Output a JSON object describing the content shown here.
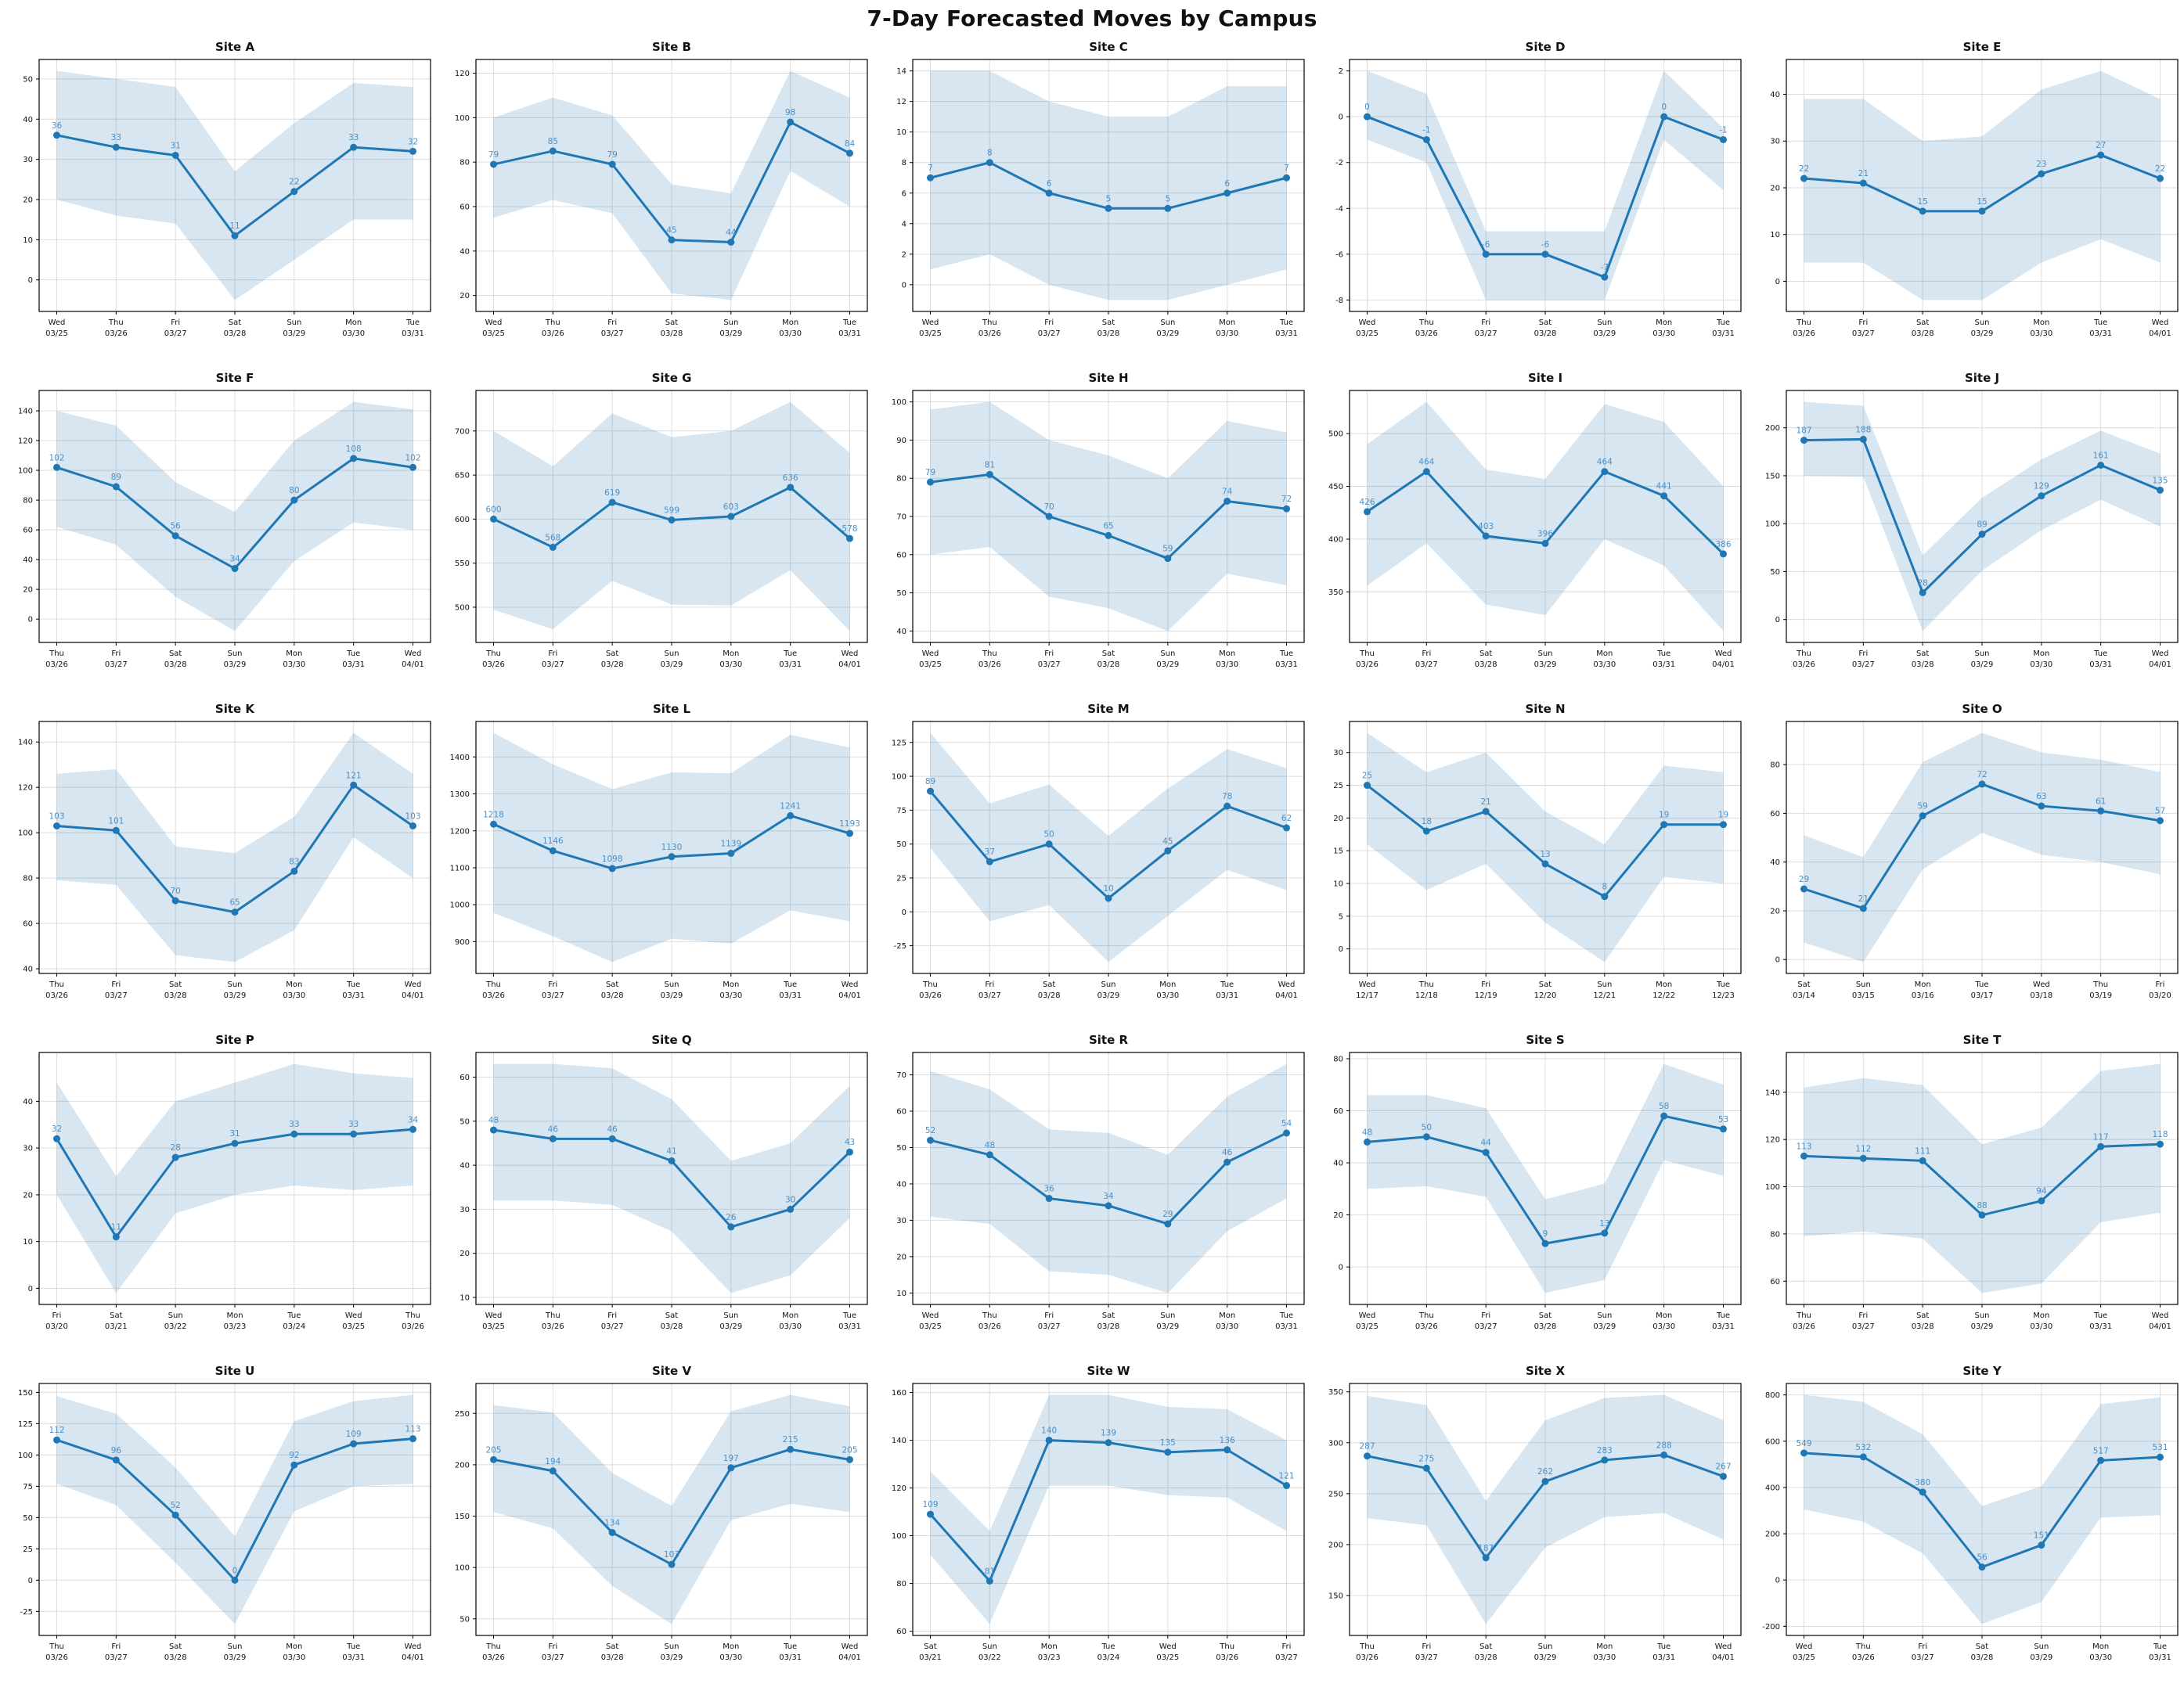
{
  "page_title": "7-Day Forecasted Moves by Campus",
  "colors": {
    "line": "#1f77b4",
    "band_fill": "#1f77b4",
    "band_opacity": 0.18,
    "value_label": "#4a90c8",
    "grid": "#dcdcdc",
    "axis": "#000000",
    "tick_text": "#111111"
  },
  "chart_data": [
    {
      "type": "line",
      "title": "Site A",
      "days": [
        "Wed",
        "Thu",
        "Fri",
        "Sat",
        "Sun",
        "Mon",
        "Tue"
      ],
      "dates": [
        "03/25",
        "03/26",
        "03/27",
        "03/28",
        "03/29",
        "03/30",
        "03/31"
      ],
      "values": [
        36,
        33,
        31,
        11,
        22,
        33,
        32
      ],
      "upper": [
        52,
        50,
        48,
        27,
        39,
        49,
        48
      ],
      "lower": [
        20,
        16,
        14,
        -5,
        5,
        15,
        15
      ],
      "yticks": [
        0,
        10,
        20,
        30,
        40,
        50
      ]
    },
    {
      "type": "line",
      "title": "Site B",
      "days": [
        "Wed",
        "Thu",
        "Fri",
        "Sat",
        "Sun",
        "Mon",
        "Tue"
      ],
      "dates": [
        "03/25",
        "03/26",
        "03/27",
        "03/28",
        "03/29",
        "03/30",
        "03/31"
      ],
      "values": [
        79,
        85,
        79,
        45,
        44,
        98,
        84
      ],
      "upper": [
        100,
        109,
        101,
        70,
        66,
        121,
        109
      ],
      "lower": [
        55,
        63,
        57,
        21,
        18,
        76,
        60
      ],
      "yticks": [
        20,
        40,
        60,
        80,
        100,
        120
      ]
    },
    {
      "type": "line",
      "title": "Site C",
      "days": [
        "Wed",
        "Thu",
        "Fri",
        "Sat",
        "Sun",
        "Mon",
        "Tue"
      ],
      "dates": [
        "03/25",
        "03/26",
        "03/27",
        "03/28",
        "03/29",
        "03/30",
        "03/31"
      ],
      "values": [
        7,
        8,
        6,
        5,
        5,
        6,
        7
      ],
      "upper": [
        14,
        14,
        12,
        11,
        11,
        13,
        13
      ],
      "lower": [
        1,
        2,
        0,
        -1,
        -1,
        0,
        1
      ],
      "yticks": [
        0,
        2,
        4,
        6,
        8,
        10,
        12,
        14
      ]
    },
    {
      "type": "line",
      "title": "Site D",
      "days": [
        "Wed",
        "Thu",
        "Fri",
        "Sat",
        "Sun",
        "Mon",
        "Tue"
      ],
      "dates": [
        "03/25",
        "03/26",
        "03/27",
        "03/28",
        "03/29",
        "03/30",
        "03/31"
      ],
      "values": [
        0,
        -1,
        -6,
        -6,
        -7,
        0,
        -1
      ],
      "upper": [
        2,
        1,
        -5,
        -5,
        -5,
        2,
        -0.5
      ],
      "lower": [
        -1,
        -2,
        -8,
        -8,
        -8,
        -1,
        -3.2
      ],
      "yticks": [
        -8,
        -6,
        -4,
        -2,
        0,
        2
      ]
    },
    {
      "type": "line",
      "title": "Site E",
      "days": [
        "Thu",
        "Fri",
        "Sat",
        "Sun",
        "Mon",
        "Tue",
        "Wed"
      ],
      "dates": [
        "03/26",
        "03/27",
        "03/28",
        "03/29",
        "03/30",
        "03/31",
        "04/01"
      ],
      "values": [
        22,
        21,
        15,
        15,
        23,
        27,
        22
      ],
      "upper": [
        39,
        39,
        30,
        31,
        41,
        45,
        39
      ],
      "lower": [
        4,
        4,
        -4,
        -4,
        4,
        9,
        4
      ],
      "yticks": [
        0,
        10,
        20,
        30,
        40
      ]
    },
    {
      "type": "line",
      "title": "Site F",
      "days": [
        "Thu",
        "Fri",
        "Sat",
        "Sun",
        "Mon",
        "Tue",
        "Wed"
      ],
      "dates": [
        "03/26",
        "03/27",
        "03/28",
        "03/29",
        "03/30",
        "03/31",
        "04/01"
      ],
      "values": [
        102,
        89,
        56,
        34,
        80,
        108,
        102
      ],
      "upper": [
        140,
        130,
        92,
        72,
        120,
        146,
        141
      ],
      "lower": [
        62,
        50,
        15,
        -8,
        39,
        65,
        60
      ],
      "yticks": [
        0,
        20,
        40,
        60,
        80,
        100,
        120,
        140
      ]
    },
    {
      "type": "line",
      "title": "Site G",
      "days": [
        "Thu",
        "Fri",
        "Sat",
        "Sun",
        "Mon",
        "Tue",
        "Wed"
      ],
      "dates": [
        "03/26",
        "03/27",
        "03/28",
        "03/29",
        "03/30",
        "03/31",
        "04/01"
      ],
      "values": [
        600,
        568,
        619,
        599,
        603,
        636,
        578
      ],
      "upper": [
        700,
        660,
        720,
        693,
        700,
        733,
        675
      ],
      "lower": [
        497,
        475,
        530,
        503,
        502,
        542,
        473
      ],
      "yticks": [
        500,
        550,
        600,
        650,
        700
      ]
    },
    {
      "type": "line",
      "title": "Site H",
      "days": [
        "Wed",
        "Thu",
        "Fri",
        "Sat",
        "Sun",
        "Mon",
        "Tue"
      ],
      "dates": [
        "03/25",
        "03/26",
        "03/27",
        "03/28",
        "03/29",
        "03/30",
        "03/31"
      ],
      "values": [
        79,
        81,
        70,
        65,
        59,
        74,
        72
      ],
      "upper": [
        98,
        100,
        90,
        86,
        80,
        95,
        92
      ],
      "lower": [
        60,
        62,
        49,
        46,
        40,
        55,
        52
      ],
      "yticks": [
        40,
        50,
        60,
        70,
        80,
        90,
        100
      ]
    },
    {
      "type": "line",
      "title": "Site I",
      "days": [
        "Thu",
        "Fri",
        "Sat",
        "Sun",
        "Mon",
        "Tue",
        "Wed"
      ],
      "dates": [
        "03/26",
        "03/27",
        "03/28",
        "03/29",
        "03/30",
        "03/31",
        "04/01"
      ],
      "values": [
        426,
        464,
        403,
        396,
        464,
        441,
        386
      ],
      "upper": [
        490,
        530,
        466,
        457,
        528,
        511,
        450
      ],
      "lower": [
        356,
        396,
        338,
        328,
        400,
        375,
        313
      ],
      "yticks": [
        350,
        400,
        450,
        500
      ]
    },
    {
      "type": "line",
      "title": "Site J",
      "days": [
        "Thu",
        "Fri",
        "Sat",
        "Sun",
        "Mon",
        "Tue",
        "Wed"
      ],
      "dates": [
        "03/26",
        "03/27",
        "03/28",
        "03/29",
        "03/30",
        "03/31",
        "04/01"
      ],
      "values": [
        187,
        188,
        28,
        89,
        129,
        161,
        135
      ],
      "upper": [
        227,
        223,
        67,
        127,
        167,
        197,
        173
      ],
      "lower": [
        150,
        149,
        -12,
        51,
        93,
        125,
        97
      ],
      "yticks": [
        0,
        50,
        100,
        150,
        200
      ]
    },
    {
      "type": "line",
      "title": "Site K",
      "days": [
        "Thu",
        "Fri",
        "Sat",
        "Sun",
        "Mon",
        "Tue",
        "Wed"
      ],
      "dates": [
        "03/26",
        "03/27",
        "03/28",
        "03/29",
        "03/30",
        "03/31",
        "04/01"
      ],
      "values": [
        103,
        101,
        70,
        65,
        83,
        121,
        103
      ],
      "upper": [
        126,
        128,
        94,
        91,
        107,
        144,
        126
      ],
      "lower": [
        79,
        77,
        46,
        43,
        57,
        98,
        80
      ],
      "yticks": [
        40,
        60,
        80,
        100,
        120,
        140
      ]
    },
    {
      "type": "line",
      "title": "Site L",
      "days": [
        "Thu",
        "Fri",
        "Sat",
        "Sun",
        "Mon",
        "Tue",
        "Wed"
      ],
      "dates": [
        "03/26",
        "03/27",
        "03/28",
        "03/29",
        "03/30",
        "03/31",
        "04/01"
      ],
      "values": [
        1218,
        1146,
        1098,
        1130,
        1139,
        1241,
        1193
      ],
      "upper": [
        1465,
        1380,
        1313,
        1358,
        1356,
        1460,
        1425
      ],
      "lower": [
        978,
        915,
        845,
        908,
        895,
        985,
        955
      ],
      "yticks": [
        900,
        1000,
        1100,
        1200,
        1300,
        1400
      ]
    },
    {
      "type": "line",
      "title": "Site M",
      "days": [
        "Thu",
        "Fri",
        "Sat",
        "Sun",
        "Mon",
        "Tue",
        "Wed"
      ],
      "dates": [
        "03/26",
        "03/27",
        "03/28",
        "03/29",
        "03/30",
        "03/31",
        "04/01"
      ],
      "values": [
        89,
        37,
        50,
        10,
        45,
        78,
        62
      ],
      "upper": [
        132,
        80,
        94,
        56,
        91,
        120,
        106
      ],
      "lower": [
        47,
        -7,
        5,
        -37,
        -3,
        31,
        16
      ],
      "yticks": [
        -25,
        0,
        25,
        50,
        75,
        100,
        125
      ]
    },
    {
      "type": "line",
      "title": "Site N",
      "days": [
        "Wed",
        "Thu",
        "Fri",
        "Sat",
        "Sun",
        "Mon",
        "Tue"
      ],
      "dates": [
        "12/17",
        "12/18",
        "12/19",
        "12/20",
        "12/21",
        "12/22",
        "12/23"
      ],
      "values": [
        25,
        18,
        21,
        13,
        8,
        19,
        19
      ],
      "upper": [
        33,
        27,
        30,
        21,
        16,
        28,
        27
      ],
      "lower": [
        16,
        9,
        13,
        4,
        -2,
        11,
        10
      ],
      "yticks": [
        0,
        5,
        10,
        15,
        20,
        25,
        30
      ]
    },
    {
      "type": "line",
      "title": "Site O",
      "days": [
        "Sat",
        "Sun",
        "Mon",
        "Tue",
        "Wed",
        "Thu",
        "Fri"
      ],
      "dates": [
        "03/14",
        "03/15",
        "03/16",
        "03/17",
        "03/18",
        "03/19",
        "03/20"
      ],
      "values": [
        29,
        21,
        59,
        72,
        63,
        61,
        57
      ],
      "upper": [
        51,
        42,
        81,
        93,
        85,
        82,
        77
      ],
      "lower": [
        7,
        -1,
        37,
        52,
        43,
        40,
        35
      ],
      "yticks": [
        0,
        20,
        40,
        60,
        80
      ]
    },
    {
      "type": "line",
      "title": "Site P",
      "days": [
        "Fri",
        "Sat",
        "Sun",
        "Mon",
        "Tue",
        "Wed",
        "Thu"
      ],
      "dates": [
        "03/20",
        "03/21",
        "03/22",
        "03/23",
        "03/24",
        "03/25",
        "03/26"
      ],
      "values": [
        32,
        11,
        28,
        31,
        33,
        33,
        34
      ],
      "upper": [
        44,
        24,
        40,
        44,
        48,
        46,
        45
      ],
      "lower": [
        20,
        -1,
        16,
        20,
        22,
        21,
        22
      ],
      "yticks": [
        0,
        10,
        20,
        30,
        40
      ]
    },
    {
      "type": "line",
      "title": "Site Q",
      "days": [
        "Wed",
        "Thu",
        "Fri",
        "Sat",
        "Sun",
        "Mon",
        "Tue"
      ],
      "dates": [
        "03/25",
        "03/26",
        "03/27",
        "03/28",
        "03/29",
        "03/30",
        "03/31"
      ],
      "values": [
        48,
        46,
        46,
        41,
        26,
        30,
        43
      ],
      "upper": [
        63,
        63,
        62,
        55,
        41,
        45,
        58
      ],
      "lower": [
        32,
        32,
        31,
        25,
        11,
        15,
        28
      ],
      "yticks": [
        10,
        20,
        30,
        40,
        50,
        60
      ]
    },
    {
      "type": "line",
      "title": "Site R",
      "days": [
        "Wed",
        "Thu",
        "Fri",
        "Sat",
        "Sun",
        "Mon",
        "Tue"
      ],
      "dates": [
        "03/25",
        "03/26",
        "03/27",
        "03/28",
        "03/29",
        "03/30",
        "03/31"
      ],
      "values": [
        52,
        48,
        36,
        34,
        29,
        46,
        54
      ],
      "upper": [
        71,
        66,
        55,
        54,
        48,
        64,
        73
      ],
      "lower": [
        31,
        29,
        16,
        15,
        10,
        27,
        36
      ],
      "yticks": [
        10,
        20,
        30,
        40,
        50,
        60,
        70
      ]
    },
    {
      "type": "line",
      "title": "Site S",
      "days": [
        "Wed",
        "Thu",
        "Fri",
        "Sat",
        "Sun",
        "Mon",
        "Tue"
      ],
      "dates": [
        "03/25",
        "03/26",
        "03/27",
        "03/28",
        "03/29",
        "03/30",
        "03/31"
      ],
      "values": [
        48,
        50,
        44,
        9,
        13,
        58,
        53
      ],
      "upper": [
        66,
        66,
        61,
        26,
        32,
        78,
        70
      ],
      "lower": [
        30,
        31,
        27,
        -10,
        -5,
        41,
        35
      ],
      "yticks": [
        0,
        20,
        40,
        60,
        80
      ]
    },
    {
      "type": "line",
      "title": "Site T",
      "days": [
        "Thu",
        "Fri",
        "Sat",
        "Sun",
        "Mon",
        "Tue",
        "Wed"
      ],
      "dates": [
        "03/26",
        "03/27",
        "03/28",
        "03/29",
        "03/30",
        "03/31",
        "04/01"
      ],
      "values": [
        113,
        112,
        111,
        88,
        94,
        117,
        118
      ],
      "upper": [
        142,
        146,
        143,
        118,
        125,
        149,
        152
      ],
      "lower": [
        79,
        81,
        78,
        55,
        59,
        85,
        89
      ],
      "yticks": [
        60,
        80,
        100,
        120,
        140
      ]
    },
    {
      "type": "line",
      "title": "Site U",
      "days": [
        "Thu",
        "Fri",
        "Sat",
        "Sun",
        "Mon",
        "Tue",
        "Wed"
      ],
      "dates": [
        "03/26",
        "03/27",
        "03/28",
        "03/29",
        "03/30",
        "03/31",
        "04/01"
      ],
      "values": [
        112,
        96,
        52,
        0,
        92,
        109,
        113
      ],
      "upper": [
        147,
        133,
        90,
        35,
        127,
        143,
        148
      ],
      "lower": [
        77,
        60,
        14,
        -35,
        55,
        75,
        77
      ],
      "yticks": [
        -25,
        0,
        25,
        50,
        75,
        100,
        125,
        150
      ]
    },
    {
      "type": "line",
      "title": "Site V",
      "days": [
        "Thu",
        "Fri",
        "Sat",
        "Sun",
        "Mon",
        "Tue",
        "Wed"
      ],
      "dates": [
        "03/26",
        "03/27",
        "03/28",
        "03/29",
        "03/30",
        "03/31",
        "04/01"
      ],
      "values": [
        205,
        194,
        134,
        103,
        197,
        215,
        205
      ],
      "upper": [
        258,
        251,
        192,
        160,
        252,
        268,
        257
      ],
      "lower": [
        154,
        138,
        82,
        45,
        146,
        162,
        154
      ],
      "yticks": [
        50,
        100,
        150,
        200,
        250
      ]
    },
    {
      "type": "line",
      "title": "Site W",
      "days": [
        "Sat",
        "Sun",
        "Mon",
        "Tue",
        "Wed",
        "Thu",
        "Fri"
      ],
      "dates": [
        "03/21",
        "03/22",
        "03/23",
        "03/24",
        "03/25",
        "03/26",
        "03/27"
      ],
      "values": [
        109,
        81,
        140,
        139,
        135,
        136,
        121
      ],
      "upper": [
        127,
        102,
        159,
        159,
        154,
        153,
        140
      ],
      "lower": [
        92,
        63,
        121,
        121,
        117,
        116,
        102
      ],
      "yticks": [
        60,
        80,
        100,
        120,
        140,
        160
      ]
    },
    {
      "type": "line",
      "title": "Site X",
      "days": [
        "Thu",
        "Fri",
        "Sat",
        "Sun",
        "Mon",
        "Tue",
        "Wed"
      ],
      "dates": [
        "03/26",
        "03/27",
        "03/28",
        "03/29",
        "03/30",
        "03/31",
        "04/01"
      ],
      "values": [
        287,
        275,
        187,
        262,
        283,
        288,
        267
      ],
      "upper": [
        346,
        337,
        243,
        322,
        344,
        347,
        322
      ],
      "lower": [
        226,
        219,
        122,
        197,
        227,
        231,
        205
      ],
      "yticks": [
        150,
        200,
        250,
        300,
        350
      ]
    },
    {
      "type": "line",
      "title": "Site Y",
      "days": [
        "Wed",
        "Thu",
        "Fri",
        "Sat",
        "Sun",
        "Mon",
        "Tue"
      ],
      "dates": [
        "03/25",
        "03/26",
        "03/27",
        "03/28",
        "03/29",
        "03/30",
        "03/31"
      ],
      "values": [
        549,
        532,
        380,
        56,
        151,
        517,
        531
      ],
      "upper": [
        800,
        770,
        630,
        320,
        405,
        760,
        790
      ],
      "lower": [
        305,
        252,
        115,
        -190,
        -95,
        270,
        280
      ],
      "yticks": [
        -200,
        0,
        200,
        400,
        600,
        800
      ]
    }
  ]
}
